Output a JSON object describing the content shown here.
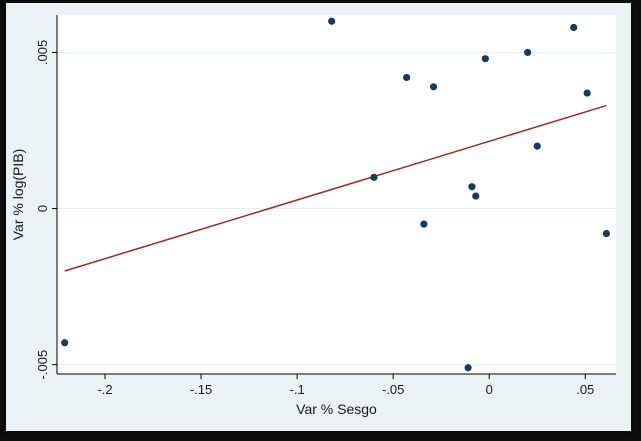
{
  "chart_data": {
    "type": "scatter",
    "xlabel": "Var % Sesgo",
    "ylabel": "Var % log(PIB)",
    "xlim": [
      -0.225,
      0.066
    ],
    "ylim": [
      -0.0053,
      0.0062
    ],
    "xticks": [
      -0.2,
      -0.15,
      -0.1,
      -0.05,
      0,
      0.05
    ],
    "xtick_labels": [
      "-.2",
      "-.15",
      "-.1",
      "-.05",
      "0",
      ".05"
    ],
    "yticks": [
      -0.005,
      0,
      0.005
    ],
    "ytick_labels": [
      "-.005",
      "0",
      ".005"
    ],
    "grid": "horizontal",
    "legend": "none",
    "point_color": "#1a3a5c",
    "line_color": "#9a2a2a",
    "points": [
      {
        "x": -0.221,
        "y": -0.0043
      },
      {
        "x": -0.082,
        "y": 0.006
      },
      {
        "x": -0.06,
        "y": 0.001
      },
      {
        "x": -0.043,
        "y": 0.0042
      },
      {
        "x": -0.034,
        "y": -0.0005
      },
      {
        "x": -0.029,
        "y": 0.0039
      },
      {
        "x": -0.011,
        "y": -0.0051
      },
      {
        "x": -0.009,
        "y": 0.0007
      },
      {
        "x": -0.007,
        "y": 0.0004
      },
      {
        "x": -0.002,
        "y": 0.0048
      },
      {
        "x": 0.02,
        "y": 0.005
      },
      {
        "x": 0.025,
        "y": 0.002
      },
      {
        "x": 0.044,
        "y": 0.0058
      },
      {
        "x": 0.051,
        "y": 0.0037
      },
      {
        "x": 0.061,
        "y": -0.0008
      }
    ],
    "fit_line": {
      "x": [
        -0.221,
        0.061
      ],
      "y": [
        -0.002,
        0.0033
      ]
    }
  }
}
